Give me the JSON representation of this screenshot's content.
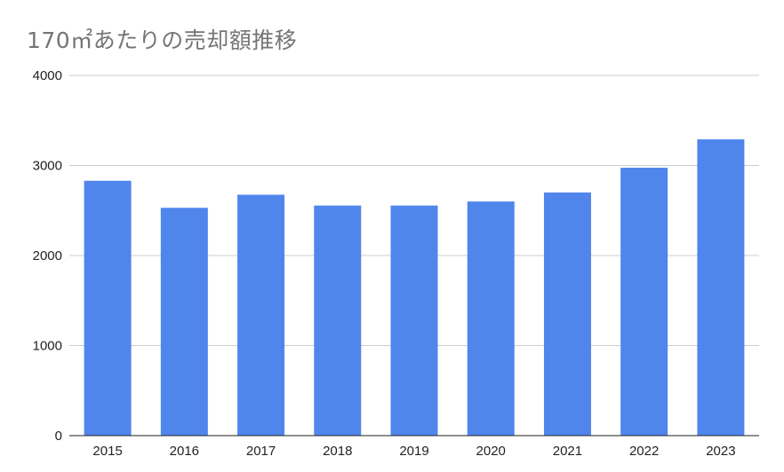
{
  "chart_data": {
    "type": "bar",
    "title": "170㎡あたりの売却額推移",
    "xlabel": "",
    "ylabel": "",
    "categories": [
      "2015",
      "2016",
      "2017",
      "2018",
      "2019",
      "2020",
      "2021",
      "2022",
      "2023"
    ],
    "values": [
      2830,
      2530,
      2675,
      2555,
      2555,
      2600,
      2700,
      2975,
      3290
    ],
    "ylim": [
      0,
      4000
    ],
    "yticks": [
      "0",
      "1000",
      "2000",
      "3000",
      "4000"
    ],
    "grid": true,
    "legend": "none",
    "bar_color": "#5086EC",
    "grid_color": "#CCCCCC",
    "axis_color": "#222222",
    "title_color": "#757575"
  }
}
